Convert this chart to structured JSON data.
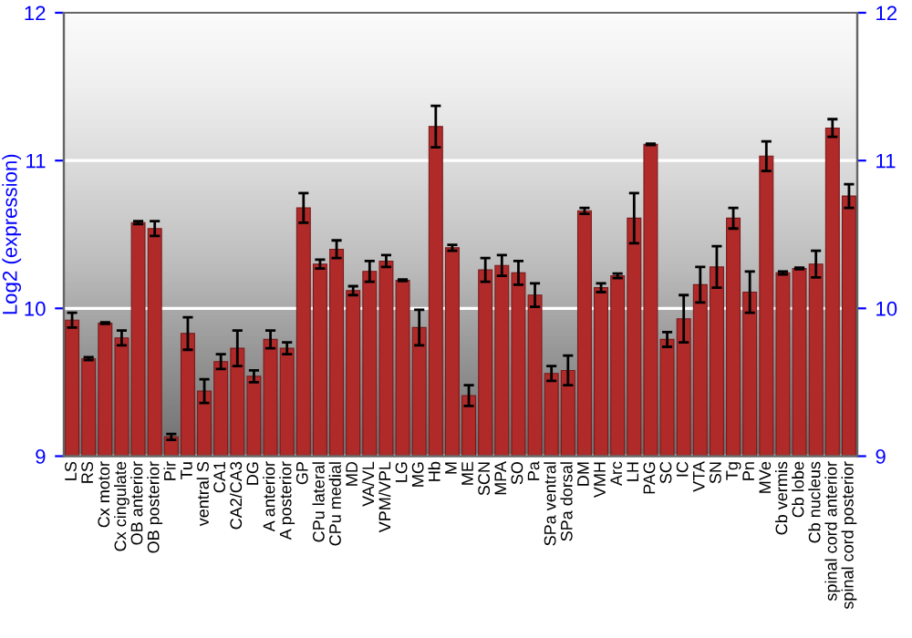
{
  "chart_data": {
    "type": "bar",
    "ylabel": "Log2 (expression)",
    "categories": [
      "LS",
      "RS",
      "Cx motor",
      "Cx cingulate",
      "OB anterior",
      "OB posterior",
      "Pir",
      "Tu",
      "ventral S",
      "CA1",
      "CA2/CA3",
      "DG",
      "A anterior",
      "A posterior",
      "GP",
      "CPu lateral",
      "CPu medial",
      "MD",
      "VA/VL",
      "VPM/VPL",
      "LG",
      "MG",
      "Hb",
      "M",
      "ME",
      "SCN",
      "MPA",
      "SO",
      "Pa",
      "SPa ventral",
      "SPa dorsal",
      "DM",
      "VMH",
      "Arc",
      "LH",
      "PAG",
      "SC",
      "IC",
      "VTA",
      "SN",
      "Tg",
      "Pn",
      "MVe",
      "Cb vermis",
      "Cb lobe",
      "Cb nucleus",
      "spinal cord anterior",
      "spinal cord posterior"
    ],
    "values": [
      9.92,
      9.66,
      9.9,
      9.8,
      10.58,
      10.54,
      9.13,
      9.83,
      9.44,
      9.64,
      9.73,
      9.54,
      9.79,
      9.73,
      10.68,
      10.3,
      10.4,
      10.12,
      10.25,
      10.32,
      10.19,
      9.87,
      11.23,
      10.41,
      9.41,
      10.26,
      10.29,
      10.24,
      10.09,
      9.56,
      9.58,
      10.66,
      10.14,
      10.22,
      10.61,
      11.11,
      9.79,
      9.93,
      10.16,
      10.28,
      10.61,
      10.11,
      11.03,
      10.24,
      10.27,
      10.3,
      11.22,
      10.76
    ],
    "errors": [
      0.05,
      0.01,
      0.005,
      0.05,
      0.01,
      0.05,
      0.02,
      0.11,
      0.08,
      0.05,
      0.12,
      0.04,
      0.06,
      0.04,
      0.1,
      0.03,
      0.06,
      0.03,
      0.07,
      0.04,
      0.005,
      0.12,
      0.14,
      0.02,
      0.07,
      0.08,
      0.07,
      0.08,
      0.08,
      0.05,
      0.1,
      0.02,
      0.03,
      0.015,
      0.17,
      0.005,
      0.05,
      0.16,
      0.12,
      0.14,
      0.07,
      0.14,
      0.1,
      0.01,
      0.005,
      0.09,
      0.06,
      0.08
    ],
    "color": "#b02a2a",
    "ylim": [
      9,
      12
    ],
    "yticks": [
      9,
      10,
      11,
      12
    ],
    "y2lim": [
      9,
      12
    ],
    "y2ticks": [
      9,
      10,
      11,
      12
    ],
    "grid": "y",
    "legend": false
  }
}
